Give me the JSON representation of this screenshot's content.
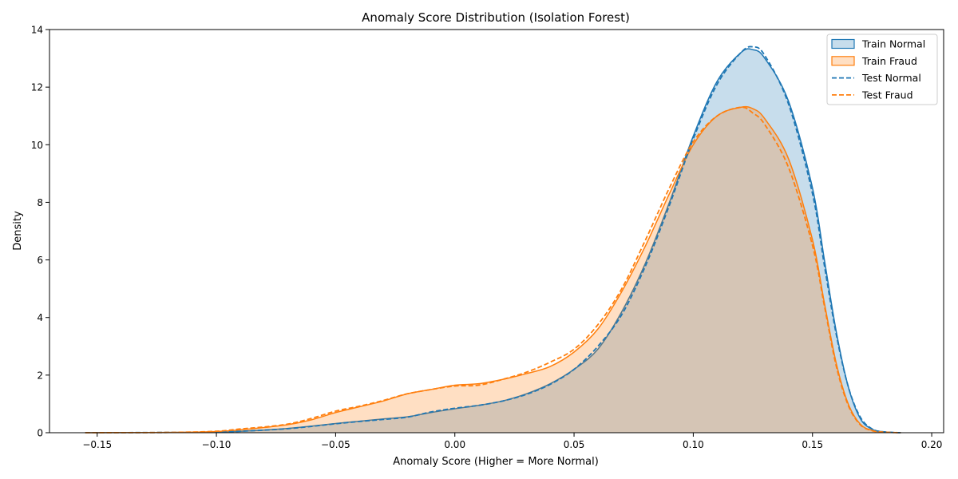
{
  "chart_data": {
    "type": "line",
    "title": "Anomaly Score Distribution (Isolation Forest)",
    "xlabel": "Anomaly Score (Higher = More Normal)",
    "ylabel": "Density",
    "xlim": [
      -0.17,
      0.205
    ],
    "ylim": [
      0,
      14
    ],
    "xticks": [
      -0.15,
      -0.1,
      -0.05,
      0.0,
      0.05,
      0.1,
      0.15,
      0.2
    ],
    "xtick_labels": [
      "−0.15",
      "−0.10",
      "−0.05",
      "0.00",
      "0.05",
      "0.10",
      "0.15",
      "0.20"
    ],
    "yticks": [
      0,
      2,
      4,
      6,
      8,
      10,
      12,
      14
    ],
    "ytick_labels": [
      "0",
      "2",
      "4",
      "6",
      "8",
      "10",
      "12",
      "14"
    ],
    "grid": false,
    "legend_position": "top-right",
    "x": [
      -0.155,
      -0.14,
      -0.12,
      -0.1,
      -0.09,
      -0.08,
      -0.07,
      -0.06,
      -0.05,
      -0.04,
      -0.03,
      -0.02,
      -0.01,
      0.0,
      0.01,
      0.02,
      0.03,
      0.04,
      0.05,
      0.06,
      0.07,
      0.08,
      0.09,
      0.1,
      0.11,
      0.12,
      0.125,
      0.13,
      0.14,
      0.15,
      0.155,
      0.16,
      0.165,
      0.17,
      0.175,
      0.18,
      0.187
    ],
    "series": [
      {
        "name": "Train Normal",
        "style": "filled",
        "color": "#1f77b4",
        "values": [
          0,
          0.003,
          0.01,
          0.02,
          0.05,
          0.09,
          0.15,
          0.23,
          0.32,
          0.4,
          0.48,
          0.55,
          0.7,
          0.83,
          0.95,
          1.1,
          1.35,
          1.7,
          2.2,
          2.9,
          4.2,
          5.9,
          8.0,
          10.3,
          12.2,
          13.2,
          13.3,
          13.0,
          11.5,
          8.5,
          6.0,
          3.5,
          1.6,
          0.5,
          0.12,
          0.03,
          0
        ]
      },
      {
        "name": "Train Fraud",
        "style": "filled",
        "color": "#ff7f0e",
        "values": [
          0,
          0.003,
          0.01,
          0.04,
          0.1,
          0.18,
          0.28,
          0.45,
          0.7,
          0.9,
          1.1,
          1.35,
          1.5,
          1.65,
          1.7,
          1.85,
          2.05,
          2.3,
          2.8,
          3.6,
          4.9,
          6.5,
          8.3,
          10.0,
          11.0,
          11.3,
          11.25,
          10.9,
          9.5,
          6.7,
          4.5,
          2.4,
          1.0,
          0.3,
          0.08,
          0.02,
          0
        ]
      },
      {
        "name": "Test Normal",
        "style": "dashed",
        "color": "#1f77b4",
        "values": [
          0,
          0.003,
          0.01,
          0.02,
          0.05,
          0.09,
          0.14,
          0.22,
          0.31,
          0.39,
          0.46,
          0.54,
          0.72,
          0.85,
          0.95,
          1.1,
          1.33,
          1.68,
          2.2,
          3.0,
          4.1,
          5.8,
          7.9,
          10.2,
          12.1,
          13.2,
          13.4,
          13.1,
          11.4,
          8.3,
          5.8,
          3.4,
          1.6,
          0.55,
          0.13,
          0.03,
          0
        ]
      },
      {
        "name": "Test Fraud",
        "style": "dashed",
        "color": "#ff7f0e",
        "values": [
          0,
          0.003,
          0.01,
          0.05,
          0.13,
          0.2,
          0.3,
          0.5,
          0.75,
          0.92,
          1.12,
          1.35,
          1.5,
          1.62,
          1.65,
          1.85,
          2.1,
          2.45,
          2.9,
          3.75,
          5.0,
          6.7,
          8.5,
          10.1,
          11.0,
          11.3,
          11.1,
          10.7,
          9.2,
          6.5,
          4.4,
          2.3,
          0.95,
          0.28,
          0.07,
          0.02,
          0
        ]
      }
    ]
  }
}
